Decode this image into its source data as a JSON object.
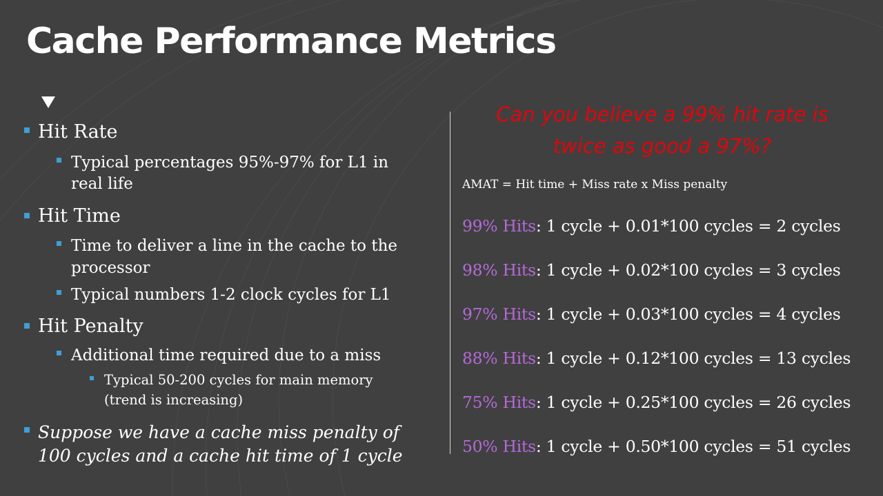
{
  "slide": {
    "title": "Cache Performance Metrics",
    "left": {
      "hit_rate": "Hit Rate",
      "hit_rate_detail_1": "Typical percentages 95%-97% for L1 in",
      "hit_rate_detail_2": "real life",
      "hit_time": "Hit Time",
      "hit_time_detail_a1": "Time to deliver a line in the cache to the",
      "hit_time_detail_a2": "processor",
      "hit_time_detail_b": "Typical numbers 1-2 clock cycles for L1",
      "hit_penalty": "Hit Penalty",
      "hit_penalty_detail": "Additional time required due to a miss",
      "hit_penalty_sub_1": "Typical 50-200 cycles for main memory",
      "hit_penalty_sub_2": "(trend is increasing)",
      "suppose_1": "Suppose we have a cache miss penalty of",
      "suppose_2": "100 cycles and a cache hit time of 1 cycle"
    },
    "right": {
      "question_1": "Can you believe a 99% hit rate is",
      "question_2": "twice as good a 97%?",
      "formula": "AMAT = Hit time + Miss rate x Miss penalty",
      "rows": [
        {
          "hits": "99% Hits",
          "rest": ": 1 cycle + 0.01*100 cycles = 2 cycles"
        },
        {
          "hits": "98% Hits",
          "rest": ": 1 cycle + 0.02*100 cycles = 3 cycles"
        },
        {
          "hits": "97% Hits",
          "rest": ": 1 cycle + 0.03*100 cycles = 4 cycles"
        },
        {
          "hits": "88% Hits",
          "rest": ": 1 cycle + 0.12*100 cycles = 13 cycles"
        },
        {
          "hits": "75% Hits",
          "rest": ": 1 cycle + 0.25*100 cycles = 26 cycles"
        },
        {
          "hits": "50% Hits",
          "rest": ": 1 cycle + 0.50*100 cycles = 51 cycles"
        }
      ]
    },
    "colors": {
      "background": "#404040",
      "bullet": "#3e9fd6",
      "question": "#e0060c",
      "hits": "#b46ad8"
    }
  }
}
